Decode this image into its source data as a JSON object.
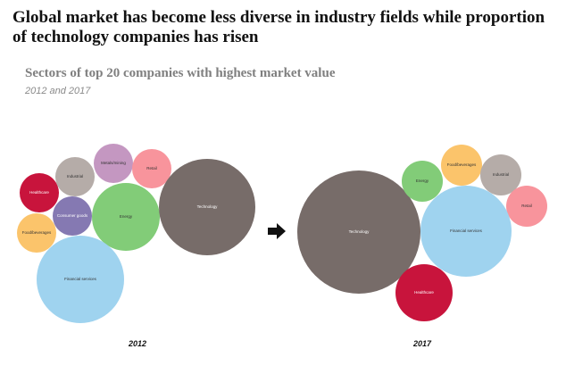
{
  "title": "Global market has become less diverse in industry fields while proportion of technology companies has risen",
  "chart_data": {
    "type": "bubble",
    "title": "Sectors of top 20 companies with highest market value",
    "subtitle": "2012 and 2017",
    "colors": {
      "Technology": "#776c69",
      "Financial services": "#9fd3ef",
      "Energy": "#82cc78",
      "Healthcare": "#c8143c",
      "Industrial": "#b5aca8",
      "Metals/mining": "#c497c1",
      "Retail": "#f8949c",
      "Consumer goods": "#8579b2",
      "Food/beverages": "#fbc46b"
    },
    "panels": [
      {
        "label": "2012",
        "sectors": [
          "Healthcare",
          "Industrial",
          "Metals/mining",
          "Retail",
          "Consumer goods",
          "Food/beverages",
          "Energy",
          "Technology",
          "Financial services"
        ]
      },
      {
        "label": "2017",
        "sectors": [
          "Technology",
          "Energy",
          "Food/beverages",
          "Industrial",
          "Retail",
          "Financial services",
          "Healthcare"
        ]
      }
    ],
    "arrow_icon": "arrow-right-icon"
  }
}
